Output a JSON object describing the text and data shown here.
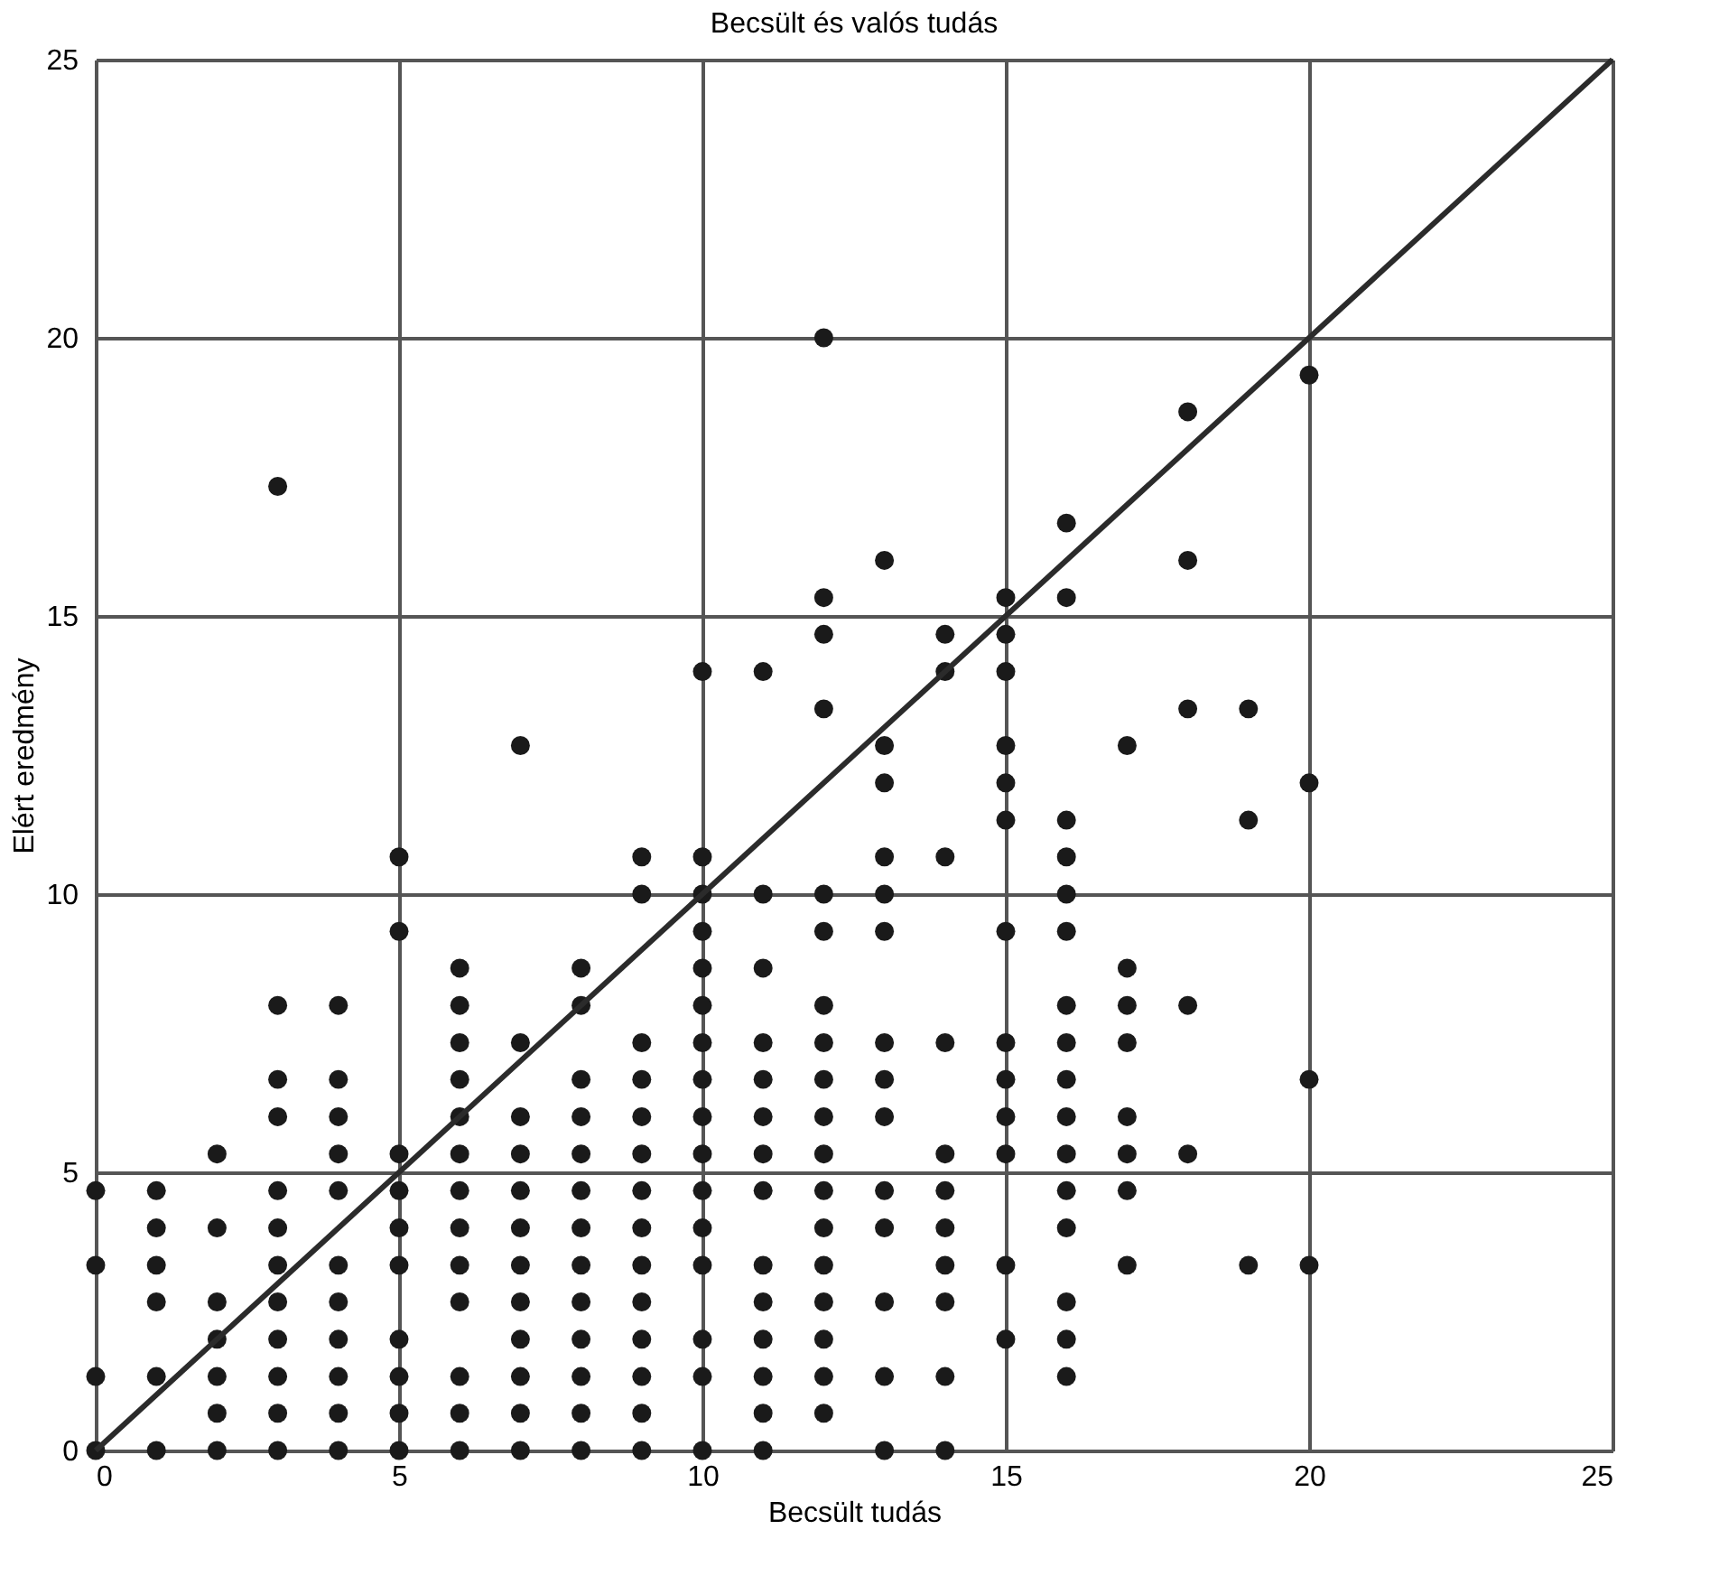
{
  "chart_data": {
    "type": "scatter",
    "title": "Becsült  és valós tudás",
    "xlabel": "Becsült tudás",
    "ylabel": "Elért eredmény",
    "xlim": [
      0,
      25
    ],
    "ylim": [
      0,
      25
    ],
    "xticks": [
      0,
      5,
      10,
      15,
      20,
      25
    ],
    "yticks": [
      0,
      5,
      10,
      15,
      20,
      25
    ],
    "grid": true,
    "series": [
      {
        "marker": "circle",
        "color": "#1a1a1a",
        "x": [
          0,
          0,
          0,
          0,
          1,
          1,
          1,
          1,
          1,
          1,
          2,
          2,
          2,
          2,
          2,
          2,
          2,
          3,
          3,
          3,
          3,
          3,
          3,
          3,
          3,
          3,
          3,
          3,
          3,
          4,
          4,
          4,
          4,
          4,
          4,
          4,
          4,
          4,
          4,
          4,
          5,
          5,
          5,
          5,
          5,
          5,
          5,
          5,
          5,
          5,
          6,
          6,
          6,
          6,
          6,
          6,
          6,
          6,
          6,
          6,
          6,
          6,
          6,
          7,
          7,
          7,
          7,
          7,
          7,
          7,
          7,
          7,
          7,
          7,
          7,
          8,
          8,
          8,
          8,
          8,
          8,
          8,
          8,
          8,
          8,
          8,
          8,
          8,
          9,
          9,
          9,
          9,
          9,
          9,
          9,
          9,
          9,
          9,
          9,
          9,
          9,
          9,
          10,
          10,
          10,
          10,
          10,
          10,
          10,
          10,
          10,
          10,
          10,
          10,
          10,
          10,
          10,
          10,
          11,
          11,
          11,
          11,
          11,
          11,
          11,
          11,
          11,
          11,
          11,
          11,
          11,
          11,
          12,
          12,
          12,
          12,
          12,
          12,
          12,
          12,
          12,
          12,
          12,
          12,
          12,
          12,
          12,
          12,
          12,
          12,
          13,
          13,
          13,
          13,
          13,
          13,
          13,
          13,
          13,
          13,
          13,
          13,
          13,
          13,
          14,
          14,
          14,
          14,
          14,
          14,
          14,
          14,
          14,
          14,
          14,
          15,
          15,
          15,
          15,
          15,
          15,
          15,
          15,
          15,
          15,
          15,
          15,
          15,
          16,
          16,
          16,
          16,
          16,
          16,
          16,
          16,
          16,
          16,
          16,
          16,
          16,
          16,
          16,
          16,
          17,
          17,
          17,
          17,
          17,
          17,
          17,
          17,
          18,
          18,
          18,
          18,
          18,
          19,
          19,
          19,
          20,
          20,
          20,
          20
        ],
        "values": [
          0,
          1.33,
          3.33,
          4.67,
          0,
          1.33,
          2.67,
          3.33,
          4,
          4.67,
          0,
          0.67,
          1.33,
          2,
          2.67,
          4,
          5.33,
          0,
          0.67,
          1.33,
          2,
          2.67,
          3.33,
          4,
          4.67,
          6,
          6.67,
          8,
          17.33,
          0,
          0.67,
          1.33,
          2,
          2.67,
          3.33,
          4.67,
          5.33,
          6,
          6.67,
          8,
          0,
          0.67,
          1.33,
          2,
          3.33,
          4,
          4.67,
          5.33,
          9.33,
          10.67,
          0,
          0.67,
          1.33,
          2.67,
          3.33,
          4,
          4.67,
          5.33,
          6,
          6.67,
          7.33,
          8,
          8.67,
          0,
          0.67,
          1.33,
          2,
          2.67,
          3.33,
          4,
          4.67,
          5.33,
          6,
          7.33,
          12.67,
          0,
          0.67,
          1.33,
          2,
          2.67,
          3.33,
          4,
          4.67,
          5.33,
          6,
          6.67,
          8,
          8.67,
          0,
          0.67,
          1.33,
          2,
          2.67,
          3.33,
          4,
          4.67,
          5.33,
          6,
          6.67,
          7.33,
          10,
          10.67,
          0,
          1.33,
          2,
          3.33,
          4,
          4.67,
          5.33,
          6,
          6.67,
          7.33,
          8,
          8.67,
          9.33,
          10,
          10.67,
          14,
          0,
          0.67,
          1.33,
          2,
          2.67,
          3.33,
          4.67,
          5.33,
          6,
          6.67,
          7.33,
          8.67,
          10,
          14,
          0.67,
          1.33,
          2,
          2.67,
          3.33,
          4,
          4.67,
          5.33,
          6,
          6.67,
          7.33,
          8,
          9.33,
          10,
          13.33,
          14.67,
          15.33,
          20,
          0,
          1.33,
          2.67,
          4,
          4.67,
          6,
          6.67,
          7.33,
          9.33,
          10,
          10.67,
          12,
          12.67,
          16,
          0,
          1.33,
          2.67,
          3.33,
          4,
          4.67,
          5.33,
          7.33,
          10.67,
          14,
          14.67,
          2,
          3.33,
          5.33,
          6,
          6.67,
          7.33,
          9.33,
          11.33,
          12,
          12.67,
          14,
          14.67,
          15.33,
          1.33,
          2,
          2.67,
          4,
          4.67,
          5.33,
          6,
          6.67,
          7.33,
          8,
          9.33,
          10,
          10.67,
          11.33,
          15.33,
          16.67,
          3.33,
          4.67,
          5.33,
          6,
          7.33,
          8,
          8.67,
          12.67,
          5.33,
          8,
          13.33,
          16,
          18.67,
          3.33,
          11.33,
          13.33,
          3.33,
          6.67,
          12,
          19.33
        ]
      },
      {
        "type": "line",
        "marker": "none",
        "color": "#2b2b2b",
        "x": [
          0,
          25
        ],
        "values": [
          0,
          25
        ]
      }
    ]
  }
}
